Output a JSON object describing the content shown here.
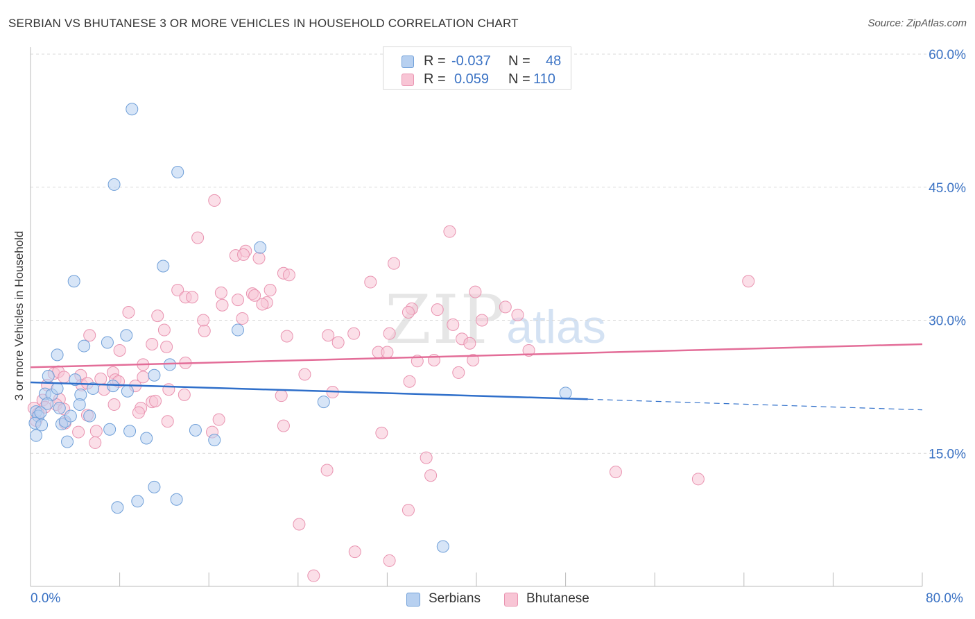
{
  "title": "SERBIAN VS BHUTANESE 3 OR MORE VEHICLES IN HOUSEHOLD CORRELATION CHART",
  "source": "Source: ZipAtlas.com",
  "watermark": {
    "zip": "ZIP",
    "atlas": "atlas"
  },
  "colors": {
    "serbians_fill": "#b7d0f0",
    "serbians_stroke": "#6f9fd8",
    "serbians_line": "#2f6fca",
    "bhutanese_fill": "#f8c5d5",
    "bhutanese_stroke": "#e993b0",
    "bhutanese_line": "#e36d98",
    "tick_label": "#3a72c4",
    "grid": "#d9d9d9"
  },
  "legend_top": {
    "rows": [
      {
        "r_label": "R =",
        "r_value": "-0.037",
        "n_label": "N =",
        "n_value": "48"
      },
      {
        "r_label": "R =",
        "r_value": "0.059",
        "n_label": "N =",
        "n_value": "110"
      }
    ]
  },
  "legend_bottom": [
    "Serbians",
    "Bhutanese"
  ],
  "chart_data": {
    "type": "scatter",
    "title": "SERBIAN VS BHUTANESE 3 OR MORE VEHICLES IN HOUSEHOLD CORRELATION CHART",
    "xlabel": "",
    "ylabel": "3 or more Vehicles in Household",
    "xlim": [
      0,
      80
    ],
    "ylim": [
      0,
      60
    ],
    "x_tick_labels": [
      "0.0%",
      "80.0%"
    ],
    "y_ticks": [
      15,
      30,
      45,
      60
    ],
    "y_tick_labels": [
      "15.0%",
      "30.0%",
      "45.0%",
      "60.0%"
    ],
    "grid": "horizontal dashed",
    "legend_position": "top-center",
    "series": [
      {
        "name": "Serbians",
        "R": -0.037,
        "N": 48,
        "trend": {
          "x": [
            0,
            50,
            80
          ],
          "y": [
            23.0,
            21.1,
            19.9
          ],
          "solid_until_x": 50
        },
        "points": [
          [
            9.1,
            53.8
          ],
          [
            7.5,
            45.3
          ],
          [
            13.2,
            46.7
          ],
          [
            20.6,
            38.2
          ],
          [
            11.9,
            36.1
          ],
          [
            3.9,
            34.4
          ],
          [
            2.4,
            26.1
          ],
          [
            4.8,
            27.1
          ],
          [
            6.9,
            27.5
          ],
          [
            8.6,
            28.3
          ],
          [
            18.6,
            28.9
          ],
          [
            12.5,
            25.0
          ],
          [
            11.1,
            23.8
          ],
          [
            1.6,
            23.7
          ],
          [
            4.0,
            23.3
          ],
          [
            5.6,
            22.3
          ],
          [
            7.4,
            22.6
          ],
          [
            8.7,
            22.0
          ],
          [
            1.3,
            21.7
          ],
          [
            1.9,
            21.6
          ],
          [
            2.6,
            20.1
          ],
          [
            2.4,
            22.3
          ],
          [
            4.5,
            21.6
          ],
          [
            1.5,
            20.6
          ],
          [
            0.5,
            19.7
          ],
          [
            0.7,
            19.2
          ],
          [
            0.4,
            18.4
          ],
          [
            1.0,
            18.2
          ],
          [
            2.8,
            18.3
          ],
          [
            3.1,
            18.6
          ],
          [
            3.6,
            19.2
          ],
          [
            4.4,
            20.5
          ],
          [
            5.3,
            19.2
          ],
          [
            0.5,
            17.0
          ],
          [
            3.3,
            16.3
          ],
          [
            7.1,
            17.7
          ],
          [
            8.9,
            17.5
          ],
          [
            10.4,
            16.7
          ],
          [
            14.8,
            17.6
          ],
          [
            16.5,
            16.5
          ],
          [
            26.3,
            20.8
          ],
          [
            48.0,
            21.8
          ],
          [
            11.1,
            11.2
          ],
          [
            13.1,
            9.8
          ],
          [
            9.6,
            9.6
          ],
          [
            7.8,
            8.9
          ],
          [
            37.0,
            4.5
          ],
          [
            0.9,
            19.6
          ]
        ]
      },
      {
        "name": "Bhutanese",
        "R": 0.059,
        "N": 110,
        "trend": {
          "x": [
            0,
            80
          ],
          "y": [
            24.7,
            27.3
          ]
        },
        "points": [
          [
            16.5,
            43.5
          ],
          [
            37.6,
            40.0
          ],
          [
            15.0,
            39.3
          ],
          [
            19.3,
            37.8
          ],
          [
            18.4,
            37.3
          ],
          [
            19.1,
            37.4
          ],
          [
            20.5,
            37.0
          ],
          [
            32.6,
            36.4
          ],
          [
            22.7,
            35.3
          ],
          [
            23.2,
            35.1
          ],
          [
            30.5,
            34.3
          ],
          [
            64.4,
            34.4
          ],
          [
            13.2,
            33.4
          ],
          [
            17.1,
            33.1
          ],
          [
            19.9,
            33.0
          ],
          [
            21.5,
            33.4
          ],
          [
            13.9,
            32.6
          ],
          [
            14.5,
            32.6
          ],
          [
            18.6,
            32.3
          ],
          [
            20.1,
            32.8
          ],
          [
            21.2,
            32.0
          ],
          [
            39.9,
            33.2
          ],
          [
            17.2,
            31.7
          ],
          [
            20.8,
            31.8
          ],
          [
            34.2,
            31.3
          ],
          [
            36.5,
            31.2
          ],
          [
            42.6,
            31.5
          ],
          [
            8.8,
            30.9
          ],
          [
            11.4,
            30.5
          ],
          [
            15.5,
            30.0
          ],
          [
            19.0,
            30.2
          ],
          [
            33.9,
            30.9
          ],
          [
            40.5,
            30.0
          ],
          [
            43.7,
            30.6
          ],
          [
            12.0,
            28.9
          ],
          [
            15.6,
            28.8
          ],
          [
            23.0,
            28.2
          ],
          [
            26.7,
            28.3
          ],
          [
            29.0,
            28.5
          ],
          [
            37.9,
            29.5
          ],
          [
            32.2,
            28.5
          ],
          [
            5.3,
            28.3
          ],
          [
            8.0,
            26.6
          ],
          [
            10.9,
            27.3
          ],
          [
            12.2,
            27.0
          ],
          [
            27.6,
            27.5
          ],
          [
            31.2,
            26.4
          ],
          [
            32.0,
            26.4
          ],
          [
            38.7,
            27.9
          ],
          [
            39.4,
            27.4
          ],
          [
            44.7,
            26.6
          ],
          [
            13.9,
            25.2
          ],
          [
            10.1,
            25.0
          ],
          [
            34.7,
            25.4
          ],
          [
            36.2,
            25.5
          ],
          [
            39.7,
            25.5
          ],
          [
            2.1,
            24.0
          ],
          [
            2.5,
            24.2
          ],
          [
            4.5,
            23.8
          ],
          [
            6.3,
            23.4
          ],
          [
            7.4,
            24.1
          ],
          [
            10.1,
            23.6
          ],
          [
            24.6,
            23.9
          ],
          [
            3.0,
            23.6
          ],
          [
            7.6,
            23.3
          ],
          [
            1.5,
            22.7
          ],
          [
            4.6,
            22.7
          ],
          [
            5.1,
            22.9
          ],
          [
            6.6,
            22.2
          ],
          [
            9.4,
            22.6
          ],
          [
            12.4,
            22.2
          ],
          [
            13.8,
            21.6
          ],
          [
            22.5,
            21.5
          ],
          [
            27.1,
            21.9
          ],
          [
            34.0,
            23.1
          ],
          [
            38.4,
            24.1
          ],
          [
            1.1,
            21.0
          ],
          [
            2.6,
            21.1
          ],
          [
            7.5,
            20.5
          ],
          [
            9.9,
            20.1
          ],
          [
            10.9,
            20.8
          ],
          [
            0.3,
            20.1
          ],
          [
            1.3,
            20.2
          ],
          [
            2.3,
            20.5
          ],
          [
            3.0,
            20.0
          ],
          [
            5.1,
            19.3
          ],
          [
            0.7,
            19.5
          ],
          [
            9.7,
            19.6
          ],
          [
            0.5,
            18.7
          ],
          [
            3.1,
            18.4
          ],
          [
            12.3,
            18.6
          ],
          [
            16.9,
            18.8
          ],
          [
            22.7,
            18.1
          ],
          [
            4.3,
            17.4
          ],
          [
            5.9,
            17.5
          ],
          [
            16.3,
            17.4
          ],
          [
            31.5,
            17.3
          ],
          [
            5.8,
            16.2
          ],
          [
            35.5,
            14.5
          ],
          [
            26.6,
            13.1
          ],
          [
            35.9,
            12.5
          ],
          [
            52.5,
            12.9
          ],
          [
            59.9,
            12.1
          ],
          [
            33.9,
            8.6
          ],
          [
            24.1,
            7.0
          ],
          [
            29.1,
            3.9
          ],
          [
            32.2,
            2.9
          ],
          [
            25.4,
            1.2
          ],
          [
            11.2,
            20.9
          ],
          [
            7.9,
            23.1
          ]
        ]
      }
    ]
  }
}
